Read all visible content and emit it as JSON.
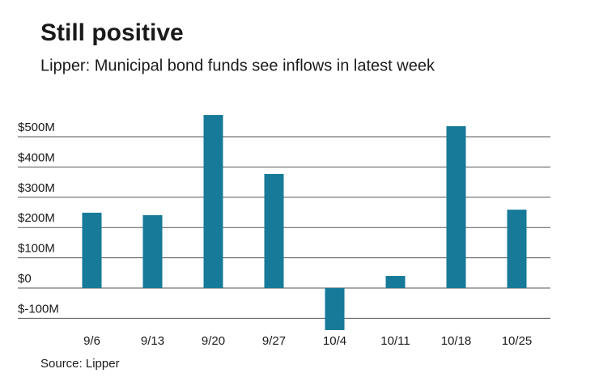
{
  "chart_data": {
    "type": "bar",
    "title": "Still positive",
    "subtitle": "Lipper: Municipal bond funds see inflows in latest week",
    "source": "Source: Lipper",
    "categories": [
      "9/6",
      "9/13",
      "9/20",
      "9/27",
      "10/4",
      "10/11",
      "10/18",
      "10/25"
    ],
    "values": [
      249,
      241,
      572,
      377,
      -139,
      40,
      535,
      259
    ],
    "color": "#167a98",
    "ylim": [
      -150,
      600
    ],
    "yticks": [
      {
        "value": -100,
        "label": "$-100M"
      },
      {
        "value": 0,
        "label": "$0"
      },
      {
        "value": 100,
        "label": "$100M"
      },
      {
        "value": 200,
        "label": "$200M"
      },
      {
        "value": 300,
        "label": "$300M"
      },
      {
        "value": 400,
        "label": "$400M"
      },
      {
        "value": 500,
        "label": "$500M"
      }
    ],
    "grid": true
  }
}
